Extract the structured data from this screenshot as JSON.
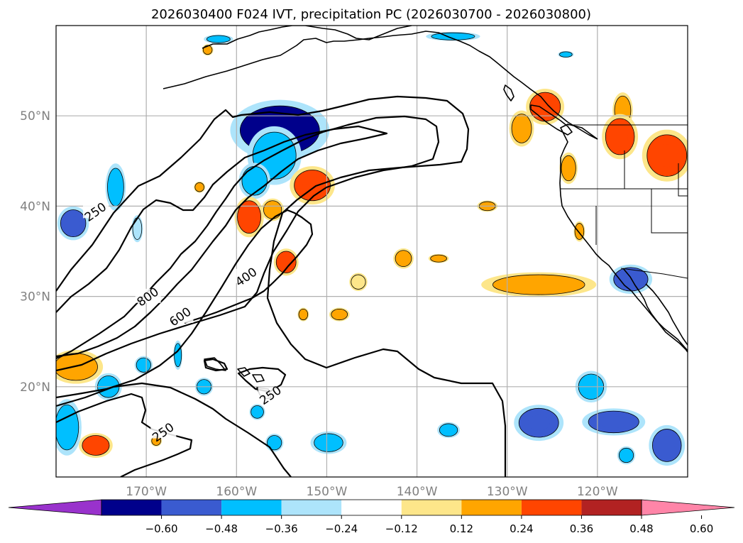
{
  "chart_data": {
    "type": "contour-map",
    "title": "2026030400 F024 IVT, precipitation PC (2026030700 - 2026030800)",
    "lon_range": [
      -180,
      -110
    ],
    "lat_range": [
      10,
      60
    ],
    "lat_ticks": [
      {
        "value": 20,
        "label": "20°N"
      },
      {
        "value": 30,
        "label": "30°N"
      },
      {
        "value": 40,
        "label": "40°N"
      },
      {
        "value": 50,
        "label": "50°N"
      }
    ],
    "lon_ticks": [
      {
        "value": -170,
        "label": "170°W"
      },
      {
        "value": -160,
        "label": "160°W"
      },
      {
        "value": -150,
        "label": "150°W"
      },
      {
        "value": -140,
        "label": "140°W"
      },
      {
        "value": -130,
        "label": "130°W"
      },
      {
        "value": -120,
        "label": "120°W"
      }
    ],
    "ivt_contour_levels": [
      250,
      400,
      600,
      800
    ],
    "ivt_contour_labels": [
      {
        "text": "250",
        "lon": -175.6,
        "lat": 39.3
      },
      {
        "text": "800",
        "lon": -169.8,
        "lat": 29.9
      },
      {
        "text": "600",
        "lon": -166.2,
        "lat": 27.7
      },
      {
        "text": "400",
        "lon": -158.9,
        "lat": 32.1
      },
      {
        "text": "250",
        "lon": -156.2,
        "lat": 19.0
      },
      {
        "text": "250",
        "lon": -168.1,
        "lat": 14.9
      }
    ],
    "colorbar": {
      "ticks": [
        "−0.60",
        "−0.48",
        "−0.36",
        "−0.24",
        "−0.12",
        "0.12",
        "0.24",
        "0.36",
        "0.48",
        "0.60"
      ],
      "colors": [
        "#9932cc",
        "#00008b",
        "#3a5bd0",
        "#00bfff",
        "#ade4fb",
        "#ffffff",
        "#fde68a",
        "#ffa500",
        "#ff4500",
        "#b22222",
        "#ff85a8"
      ],
      "extend": "both"
    },
    "pc_blobs": [
      {
        "lon": -155.2,
        "lat": 48.4,
        "rx": 4.4,
        "ry": 2.7,
        "value": -0.52
      },
      {
        "lon": -155.8,
        "lat": 45.6,
        "rx": 2.4,
        "ry": 2.6,
        "value": -0.3
      },
      {
        "lon": -158.0,
        "lat": 42.8,
        "rx": 1.4,
        "ry": 1.6,
        "value": -0.28
      },
      {
        "lon": -173.4,
        "lat": 42.1,
        "rx": 0.9,
        "ry": 2.1,
        "value": -0.3
      },
      {
        "lon": -178.1,
        "lat": 38.1,
        "rx": 1.4,
        "ry": 1.5,
        "value": -0.42
      },
      {
        "lon": -171.0,
        "lat": 37.5,
        "rx": 0.5,
        "ry": 1.2,
        "value": -0.22
      },
      {
        "lon": -166.5,
        "lat": 23.5,
        "rx": 0.4,
        "ry": 1.3,
        "value": -0.3
      },
      {
        "lon": -170.3,
        "lat": 22.4,
        "rx": 0.8,
        "ry": 0.8,
        "value": -0.3
      },
      {
        "lon": -174.2,
        "lat": 20.0,
        "rx": 1.2,
        "ry": 1.2,
        "value": -0.3
      },
      {
        "lon": -178.8,
        "lat": 15.5,
        "rx": 1.3,
        "ry": 2.5,
        "value": -0.32
      },
      {
        "lon": -163.6,
        "lat": 20.0,
        "rx": 0.8,
        "ry": 0.8,
        "value": -0.3
      },
      {
        "lon": -157.7,
        "lat": 17.2,
        "rx": 0.7,
        "ry": 0.7,
        "value": -0.3
      },
      {
        "lon": -155.8,
        "lat": 13.8,
        "rx": 0.8,
        "ry": 0.8,
        "value": -0.3
      },
      {
        "lon": -149.8,
        "lat": 13.8,
        "rx": 1.6,
        "ry": 1.0,
        "value": -0.3
      },
      {
        "lon": -136.5,
        "lat": 15.2,
        "rx": 1.0,
        "ry": 0.7,
        "value": -0.3
      },
      {
        "lon": -126.5,
        "lat": 16.0,
        "rx": 2.2,
        "ry": 1.6,
        "value": -0.4
      },
      {
        "lon": -120.7,
        "lat": 20.0,
        "rx": 1.4,
        "ry": 1.4,
        "value": -0.3
      },
      {
        "lon": -118.2,
        "lat": 16.1,
        "rx": 2.8,
        "ry": 1.2,
        "value": -0.4
      },
      {
        "lon": -116.8,
        "lat": 12.4,
        "rx": 0.8,
        "ry": 0.8,
        "value": -0.3
      },
      {
        "lon": -112.3,
        "lat": 13.5,
        "rx": 1.6,
        "ry": 1.8,
        "value": -0.46
      },
      {
        "lon": -116.3,
        "lat": 31.9,
        "rx": 1.9,
        "ry": 1.3,
        "value": -0.44
      },
      {
        "lon": -162.0,
        "lat": 58.5,
        "rx": 1.3,
        "ry": 0.4,
        "value": -0.3
      },
      {
        "lon": -136.0,
        "lat": 58.8,
        "rx": 2.4,
        "ry": 0.4,
        "value": -0.3
      },
      {
        "lon": -123.5,
        "lat": 56.8,
        "rx": 0.7,
        "ry": 0.3,
        "value": -0.3
      },
      {
        "lon": -151.6,
        "lat": 42.3,
        "rx": 2.0,
        "ry": 1.7,
        "value": 0.4
      },
      {
        "lon": -158.6,
        "lat": 38.8,
        "rx": 1.3,
        "ry": 1.8,
        "value": 0.39
      },
      {
        "lon": -156.0,
        "lat": 39.6,
        "rx": 1.0,
        "ry": 1.0,
        "value": 0.28
      },
      {
        "lon": -154.5,
        "lat": 33.8,
        "rx": 1.1,
        "ry": 1.2,
        "value": 0.38
      },
      {
        "lon": -141.5,
        "lat": 34.2,
        "rx": 0.9,
        "ry": 0.9,
        "value": 0.3
      },
      {
        "lon": -137.6,
        "lat": 34.2,
        "rx": 0.9,
        "ry": 0.4,
        "value": 0.28
      },
      {
        "lon": -132.2,
        "lat": 40.0,
        "rx": 0.9,
        "ry": 0.5,
        "value": 0.26
      },
      {
        "lon": -126.5,
        "lat": 31.3,
        "rx": 5.1,
        "ry": 1.1,
        "value": 0.3
      },
      {
        "lon": -125.8,
        "lat": 51.0,
        "rx": 1.7,
        "ry": 1.6,
        "value": 0.36
      },
      {
        "lon": -128.4,
        "lat": 48.6,
        "rx": 1.1,
        "ry": 1.6,
        "value": 0.28
      },
      {
        "lon": -123.2,
        "lat": 44.2,
        "rx": 0.8,
        "ry": 1.4,
        "value": 0.3
      },
      {
        "lon": -117.2,
        "lat": 50.6,
        "rx": 0.9,
        "ry": 1.6,
        "value": 0.28
      },
      {
        "lon": -117.5,
        "lat": 47.7,
        "rx": 1.6,
        "ry": 2.0,
        "value": 0.44
      },
      {
        "lon": -112.3,
        "lat": 45.6,
        "rx": 2.2,
        "ry": 2.3,
        "value": 0.38
      },
      {
        "lon": -122.0,
        "lat": 37.2,
        "rx": 0.5,
        "ry": 0.9,
        "value": 0.28
      },
      {
        "lon": -148.6,
        "lat": 28.0,
        "rx": 0.9,
        "ry": 0.6,
        "value": 0.3
      },
      {
        "lon": -152.6,
        "lat": 28.0,
        "rx": 0.5,
        "ry": 0.6,
        "value": 0.3
      },
      {
        "lon": -177.8,
        "lat": 22.2,
        "rx": 2.4,
        "ry": 1.5,
        "value": 0.3
      },
      {
        "lon": -175.6,
        "lat": 13.5,
        "rx": 1.5,
        "ry": 1.1,
        "value": 0.36
      },
      {
        "lon": -168.9,
        "lat": 14.0,
        "rx": 0.5,
        "ry": 0.5,
        "value": 0.24
      },
      {
        "lon": -164.1,
        "lat": 42.1,
        "rx": 0.5,
        "ry": 0.5,
        "value": 0.24
      },
      {
        "lon": -163.2,
        "lat": 57.3,
        "rx": 0.5,
        "ry": 0.5,
        "value": 0.24
      },
      {
        "lon": -146.5,
        "lat": 31.6,
        "rx": 0.8,
        "ry": 0.8,
        "value": 0.22
      }
    ]
  }
}
